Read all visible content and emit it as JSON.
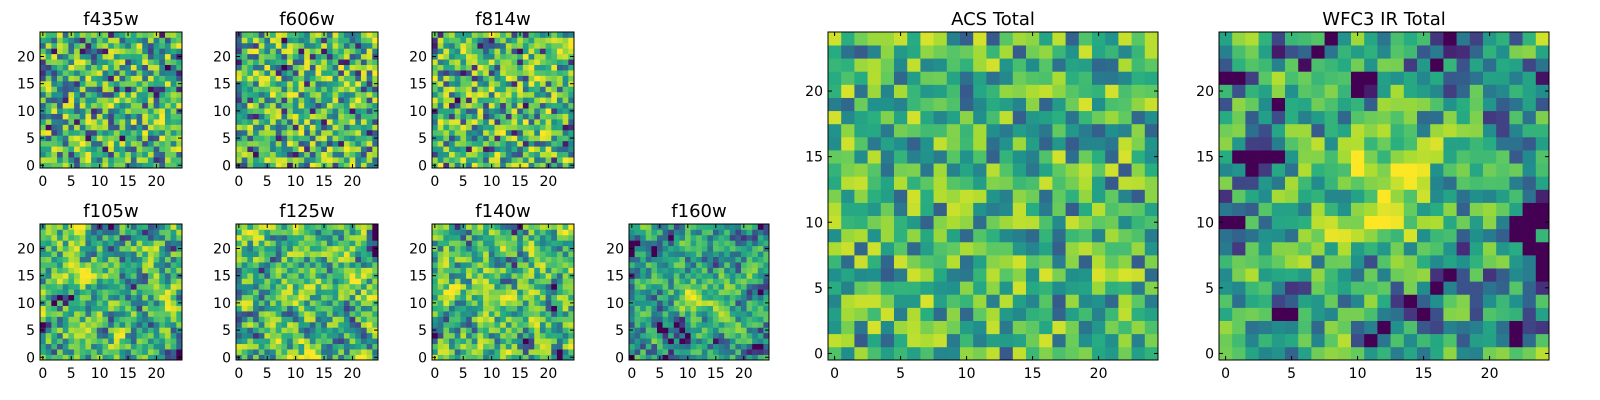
{
  "chart_data": [
    {
      "type": "heatmap",
      "title": "f435w",
      "cols": 25,
      "rows": 25,
      "seed": 11,
      "blur": 0,
      "contrast": 1.0,
      "noise": 1.0,
      "xticks": [
        0,
        5,
        10,
        15,
        20
      ],
      "yticks": [
        0,
        5,
        10,
        15,
        20
      ],
      "xtick_labels": [
        "0",
        "5",
        "10",
        "15",
        "20"
      ],
      "ytick_labels": [
        "0",
        "5",
        "10",
        "15",
        "20"
      ],
      "colormap": "viridis"
    },
    {
      "type": "heatmap",
      "title": "f606w",
      "cols": 25,
      "rows": 25,
      "seed": 23,
      "blur": 0,
      "contrast": 1.0,
      "noise": 1.0,
      "xticks": [
        0,
        5,
        10,
        15,
        20
      ],
      "yticks": [
        0,
        5,
        10,
        15,
        20
      ],
      "xtick_labels": [
        "0",
        "5",
        "10",
        "15",
        "20"
      ],
      "ytick_labels": [
        "0",
        "5",
        "10",
        "15",
        "20"
      ],
      "colormap": "viridis"
    },
    {
      "type": "heatmap",
      "title": "f814w",
      "cols": 25,
      "rows": 25,
      "seed": 37,
      "blur": 0,
      "contrast": 1.0,
      "noise": 1.0,
      "xticks": [
        0,
        5,
        10,
        15,
        20
      ],
      "yticks": [
        0,
        5,
        10,
        15,
        20
      ],
      "xtick_labels": [
        "0",
        "5",
        "10",
        "15",
        "20"
      ],
      "ytick_labels": [
        "0",
        "5",
        "10",
        "15",
        "20"
      ],
      "colormap": "viridis"
    },
    {
      "type": "heatmap",
      "title": "f105w",
      "cols": 25,
      "rows": 25,
      "seed": 41,
      "blur": 1,
      "contrast": 1.2,
      "noise": 1.0,
      "xticks": [
        0,
        5,
        10,
        15,
        20
      ],
      "yticks": [
        0,
        5,
        10,
        15,
        20
      ],
      "xtick_labels": [
        "0",
        "5",
        "10",
        "15",
        "20"
      ],
      "ytick_labels": [
        "0",
        "5",
        "10",
        "15",
        "20"
      ],
      "colormap": "viridis"
    },
    {
      "type": "heatmap",
      "title": "f125w",
      "cols": 25,
      "rows": 25,
      "seed": 53,
      "blur": 1,
      "contrast": 1.2,
      "noise": 1.0,
      "xticks": [
        0,
        5,
        10,
        15,
        20
      ],
      "yticks": [
        0,
        5,
        10,
        15,
        20
      ],
      "xtick_labels": [
        "0",
        "5",
        "10",
        "15",
        "20"
      ],
      "ytick_labels": [
        "0",
        "5",
        "10",
        "15",
        "20"
      ],
      "colormap": "viridis"
    },
    {
      "type": "heatmap",
      "title": "f140w",
      "cols": 25,
      "rows": 25,
      "seed": 67,
      "blur": 1,
      "contrast": 1.2,
      "noise": 1.0,
      "xticks": [
        0,
        5,
        10,
        15,
        20
      ],
      "yticks": [
        0,
        5,
        10,
        15,
        20
      ],
      "xtick_labels": [
        "0",
        "5",
        "10",
        "15",
        "20"
      ],
      "ytick_labels": [
        "0",
        "5",
        "10",
        "15",
        "20"
      ],
      "colormap": "viridis"
    },
    {
      "type": "heatmap",
      "title": "f160w",
      "cols": 25,
      "rows": 25,
      "seed": 79,
      "blur": 1,
      "contrast": 1.2,
      "noise": 0.9,
      "peak": {
        "x": 12,
        "y": 11,
        "amp": 0.35,
        "sigma": 3
      },
      "xticks": [
        0,
        5,
        10,
        15,
        20
      ],
      "yticks": [
        0,
        5,
        10,
        15,
        20
      ],
      "xtick_labels": [
        "0",
        "5",
        "10",
        "15",
        "20"
      ],
      "ytick_labels": [
        "0",
        "5",
        "10",
        "15",
        "20"
      ],
      "colormap": "viridis"
    },
    {
      "type": "heatmap",
      "title": "ACS Total",
      "cols": 25,
      "rows": 25,
      "seed": 97,
      "blur": 0,
      "contrast": 0.8,
      "noise": 1.0,
      "xticks": [
        0,
        5,
        10,
        15,
        20
      ],
      "yticks": [
        0,
        5,
        10,
        15,
        20
      ],
      "xtick_labels": [
        "0",
        "5",
        "10",
        "15",
        "20"
      ],
      "ytick_labels": [
        "0",
        "5",
        "10",
        "15",
        "20"
      ],
      "colormap": "viridis"
    },
    {
      "type": "heatmap",
      "title": "WFC3 IR Total",
      "cols": 25,
      "rows": 25,
      "seed": 113,
      "blur": 1,
      "contrast": 1.3,
      "noise": 0.9,
      "peak": {
        "x": 12,
        "y": 12,
        "amp": 0.4,
        "sigma": 3
      },
      "xticks": [
        0,
        5,
        10,
        15,
        20
      ],
      "yticks": [
        0,
        5,
        10,
        15,
        20
      ],
      "xtick_labels": [
        "0",
        "5",
        "10",
        "15",
        "20"
      ],
      "ytick_labels": [
        "0",
        "5",
        "10",
        "15",
        "20"
      ],
      "colormap": "viridis"
    }
  ]
}
